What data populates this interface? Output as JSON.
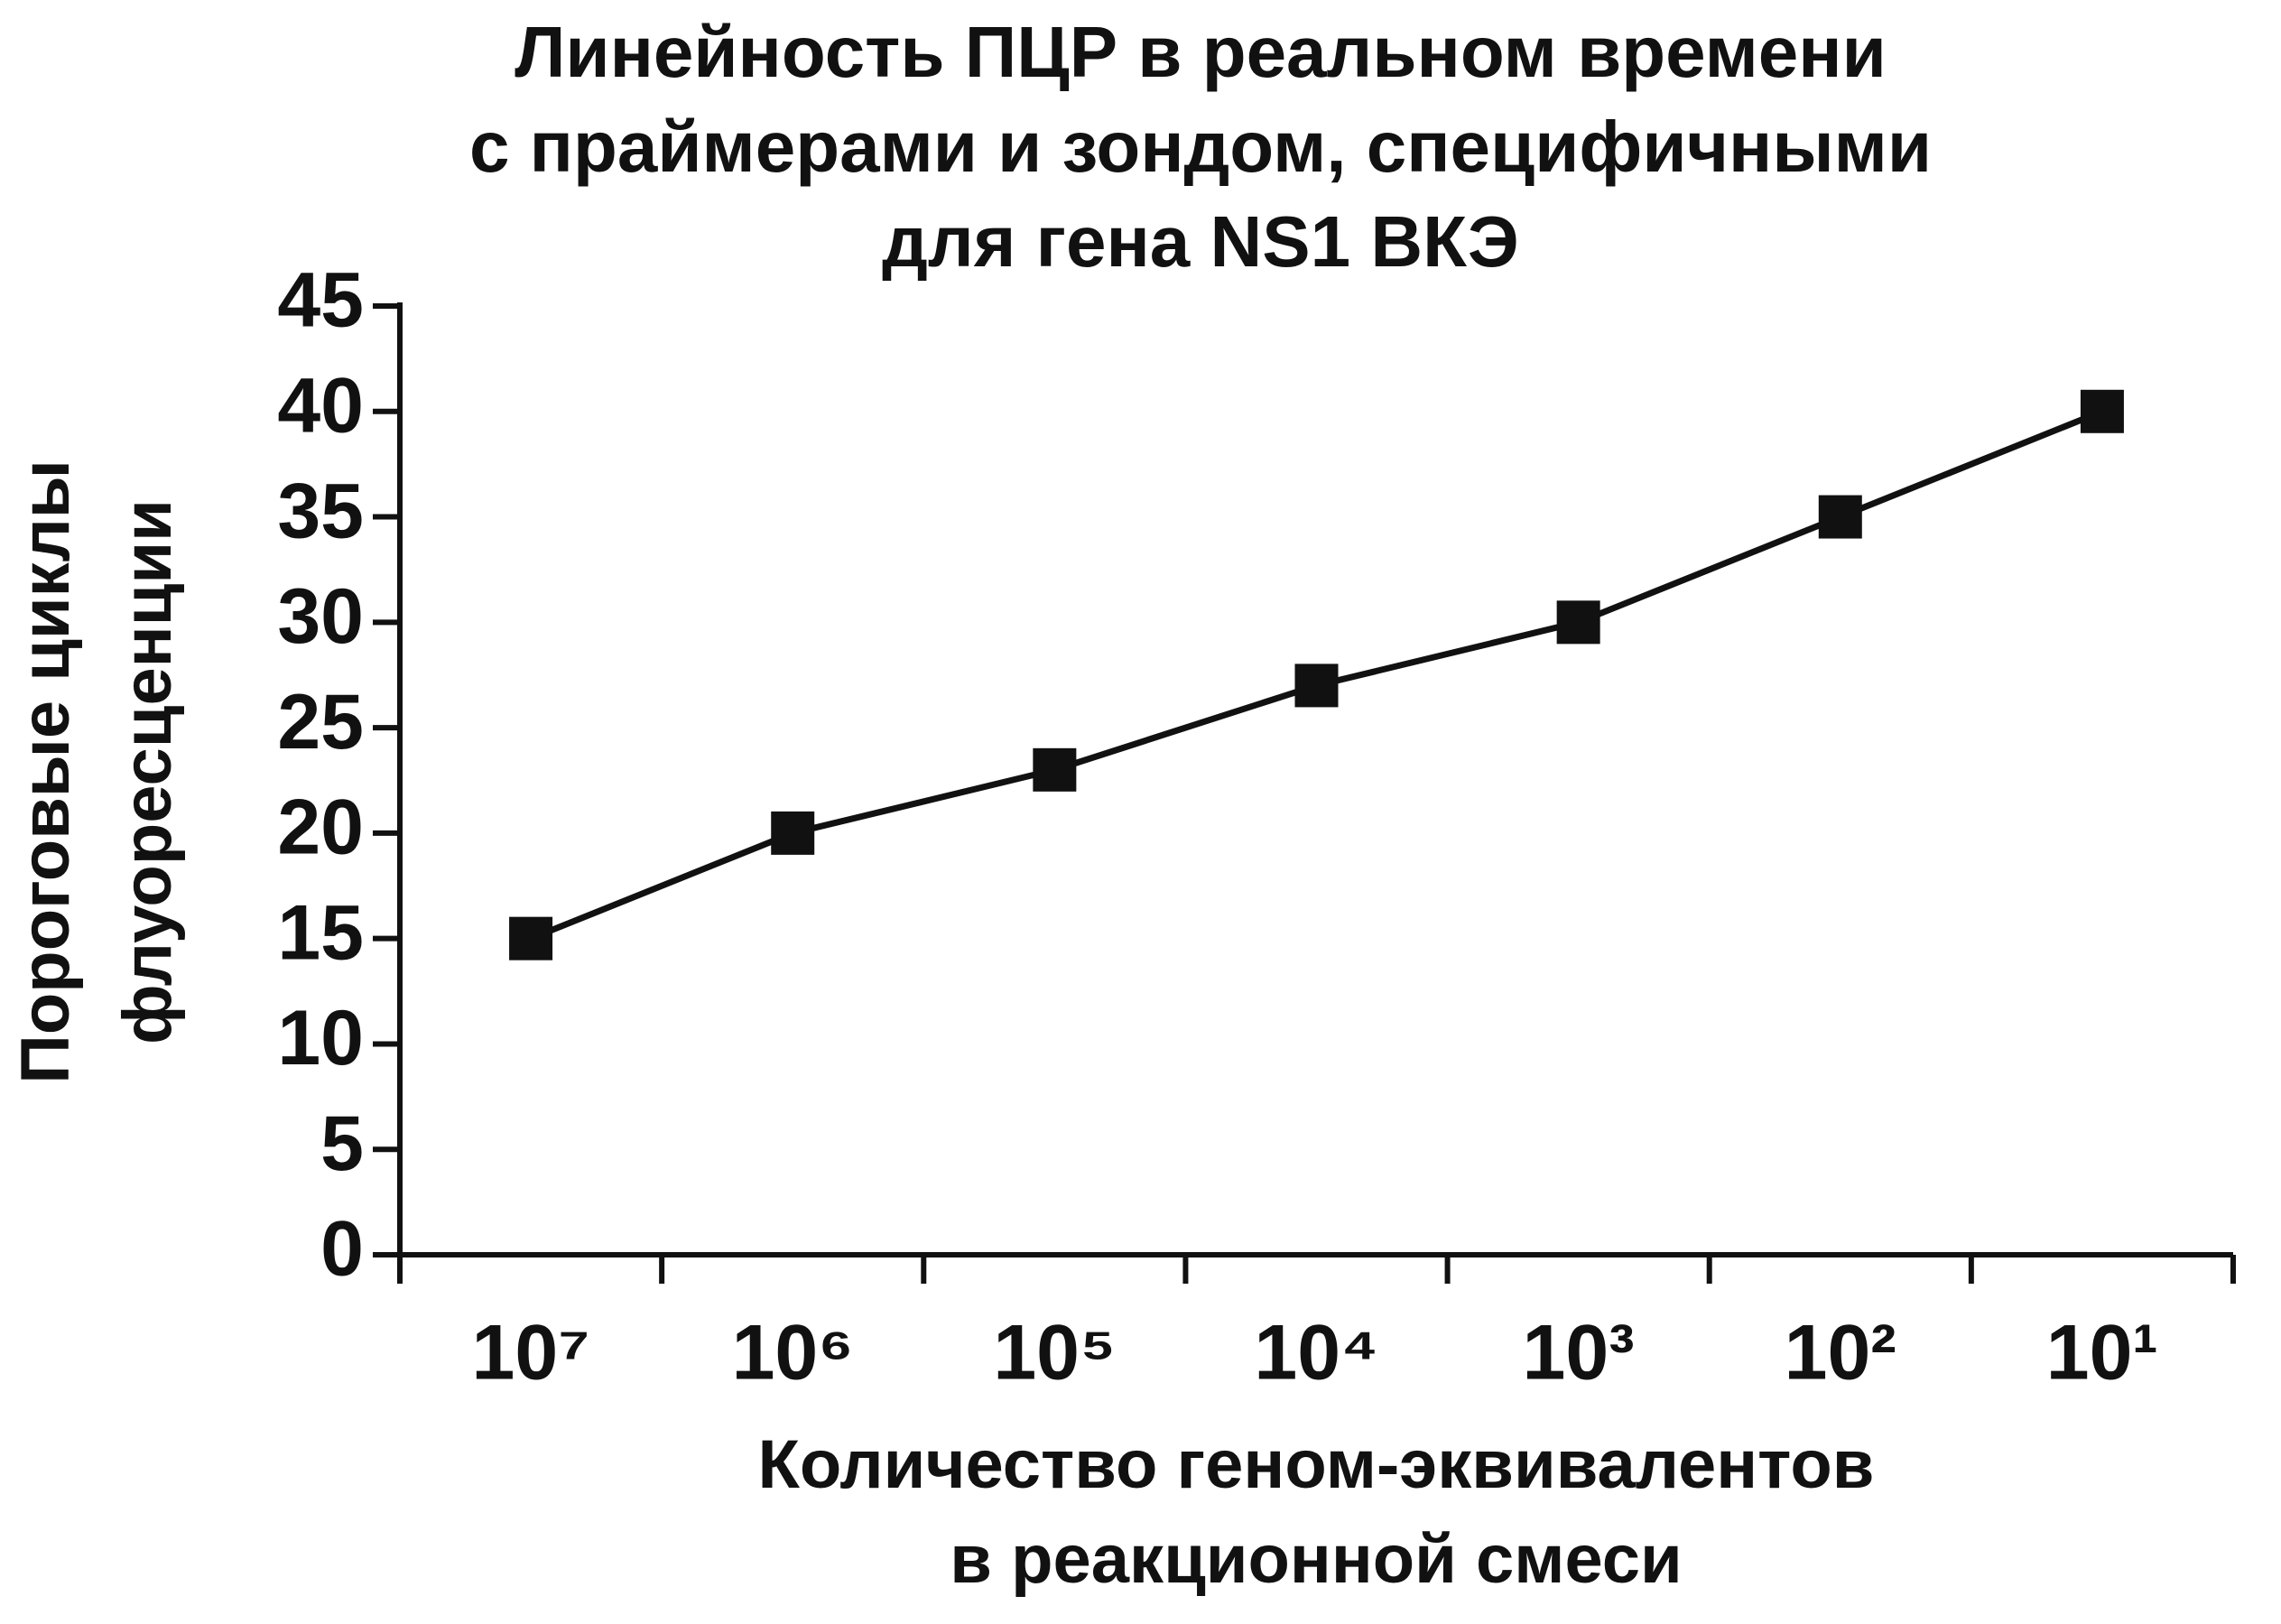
{
  "chart_data": {
    "type": "line",
    "title": [
      "Линейность ПЦР в реальном времени",
      "с праймерами и зондом, специфичными",
      "для гена NS1 ВКЭ"
    ],
    "x_label": [
      "Количество геном-эквивалентов",
      "в реакционной смеси"
    ],
    "y_label": [
      "Пороговые циклы",
      "флуоресценции"
    ],
    "categories": [
      "10⁷",
      "10⁶",
      "10⁵",
      "10⁴",
      "10³",
      "10²",
      "10¹"
    ],
    "values": [
      15,
      20,
      23,
      27,
      30,
      35,
      40
    ],
    "color": "#111111",
    "ylim": [
      0,
      45
    ],
    "yticks": [
      0,
      5,
      10,
      15,
      20,
      25,
      30,
      35,
      40,
      45
    ],
    "grid": false
  }
}
